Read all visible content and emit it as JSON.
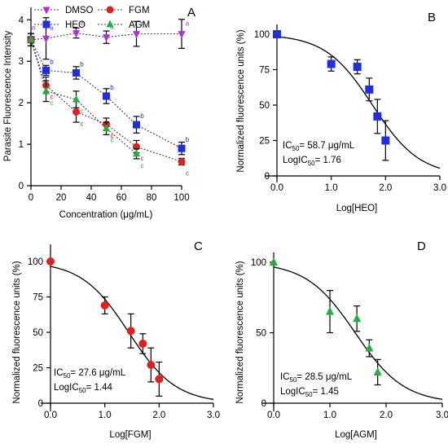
{
  "chart_data": [
    {
      "type": "line",
      "panel_label": "A",
      "xlabel": "Concentration (μg/mL)",
      "ylabel": "Parasite Fluorescence Intensity",
      "xlim": [
        0,
        100
      ],
      "ylim": [
        0,
        4.3
      ],
      "xticks": [
        0,
        20,
        40,
        60,
        80,
        100
      ],
      "yticks": [
        0,
        1,
        2,
        3,
        4
      ],
      "grid": false,
      "legend_position": "top",
      "x": [
        0,
        10,
        30,
        50,
        70,
        100
      ],
      "series": [
        {
          "name": "DMSO",
          "color": "#b030d8",
          "marker": "triangle-down",
          "values": [
            3.52,
            3.55,
            3.68,
            3.58,
            3.66,
            3.66
          ],
          "errors": [
            0.15,
            0.5,
            0.12,
            0.15,
            0.3,
            0.35
          ],
          "letters": [
            "a",
            "a",
            "a",
            "a",
            "a",
            "a"
          ]
        },
        {
          "name": "HEO",
          "color": "#1f2fe0",
          "marker": "square",
          "values": [
            3.52,
            2.78,
            2.72,
            2.16,
            1.47,
            0.9
          ],
          "errors": [
            0.15,
            0.12,
            0.15,
            0.18,
            0.2,
            0.15
          ],
          "letters": [
            "a",
            "b",
            "b",
            "b",
            "b",
            "b"
          ]
        },
        {
          "name": "FGM",
          "color": "#e02020",
          "marker": "circle",
          "values": [
            3.52,
            2.42,
            1.78,
            1.48,
            0.94,
            0.58
          ],
          "errors": [
            0.15,
            0.2,
            0.25,
            0.15,
            0.15,
            0.08
          ],
          "letters": [
            "a",
            "c",
            "c",
            "c",
            "c",
            "c"
          ]
        },
        {
          "name": "AGM",
          "color": "#20b040",
          "marker": "triangle-up",
          "values": [
            3.52,
            2.28,
            2.08,
            1.38,
            0.77,
            null
          ],
          "errors": [
            0.15,
            0.25,
            0.2,
            0.15,
            0.12,
            null
          ],
          "letters": [
            "a",
            "c",
            "c",
            "c",
            "c",
            "c"
          ]
        }
      ]
    },
    {
      "type": "scatter",
      "panel_label": "B",
      "xlabel": "Log[HEO]",
      "ylabel": "Normalized fluorescence units (%)",
      "xlim": [
        0,
        3.0
      ],
      "ylim": [
        0,
        100
      ],
      "xticks": [
        "0.0",
        "1.0",
        "2.0",
        "3.0"
      ],
      "yticks": [
        0,
        25,
        50,
        75,
        100
      ],
      "color": "#1f2fe0",
      "marker": "square",
      "x": [
        0,
        1.0,
        1.48,
        1.7,
        1.85,
        2.0
      ],
      "values": [
        100,
        79,
        77,
        61,
        42,
        25
      ],
      "errors": [
        0,
        5,
        5,
        8,
        12,
        14
      ],
      "ic50_label": "IC",
      "ic50_sub": "50",
      "ic50_value": "= 58.7 μg/mL",
      "logic50_label": "LogIC",
      "logic50_sub": "50",
      "logic50_value": "= 1.76",
      "fit": {
        "top": 100,
        "bottom": 0,
        "logIC50": 1.76,
        "hill": 1.0
      }
    },
    {
      "type": "scatter",
      "panel_label": "C",
      "xlabel": "Log[FGM]",
      "ylabel": "Normalized fluorescence units (%)",
      "xlim": [
        0,
        3.0
      ],
      "ylim": [
        0,
        100
      ],
      "xticks": [
        "0.0",
        "1.0",
        "2.0",
        "3.0"
      ],
      "yticks": [
        0,
        25,
        50,
        75,
        100
      ],
      "color": "#e02020",
      "marker": "circle",
      "x": [
        0,
        1.0,
        1.48,
        1.7,
        1.85,
        2.0
      ],
      "values": [
        100,
        69,
        51,
        42,
        27,
        17
      ],
      "errors": [
        0,
        6,
        12,
        7,
        12,
        12
      ],
      "ic50_label": "IC",
      "ic50_sub": "50",
      "ic50_value": "= 27.6 μg/mL",
      "logic50_label": "LogIC",
      "logic50_sub": "50",
      "logic50_value": "= 1.44",
      "fit": {
        "top": 100,
        "bottom": 0,
        "logIC50": 1.44,
        "hill": 1.0
      }
    },
    {
      "type": "scatter",
      "panel_label": "D",
      "xlabel": "Log[AGM]",
      "ylabel": "Normalized fluorescence units (%)",
      "xlim": [
        0,
        3.0
      ],
      "ylim": [
        0,
        100
      ],
      "xticks": [
        "0.0",
        "1.0",
        "2.0",
        "3.0"
      ],
      "yticks": [
        0,
        50,
        100
      ],
      "color": "#20b040",
      "marker": "triangle-up",
      "x": [
        0,
        1.0,
        1.48,
        1.7,
        1.85
      ],
      "values": [
        100,
        65,
        60,
        39,
        22
      ],
      "errors": [
        0,
        15,
        9,
        6,
        9
      ],
      "ic50_label": "IC",
      "ic50_sub": "50",
      "ic50_value": "= 28.5 μg/mL",
      "logic50_label": "LogIC",
      "logic50_sub": "50",
      "logic50_value": "= 1.45",
      "fit": {
        "top": 100,
        "bottom": 0,
        "logIC50": 1.45,
        "hill": 1.0
      }
    }
  ]
}
